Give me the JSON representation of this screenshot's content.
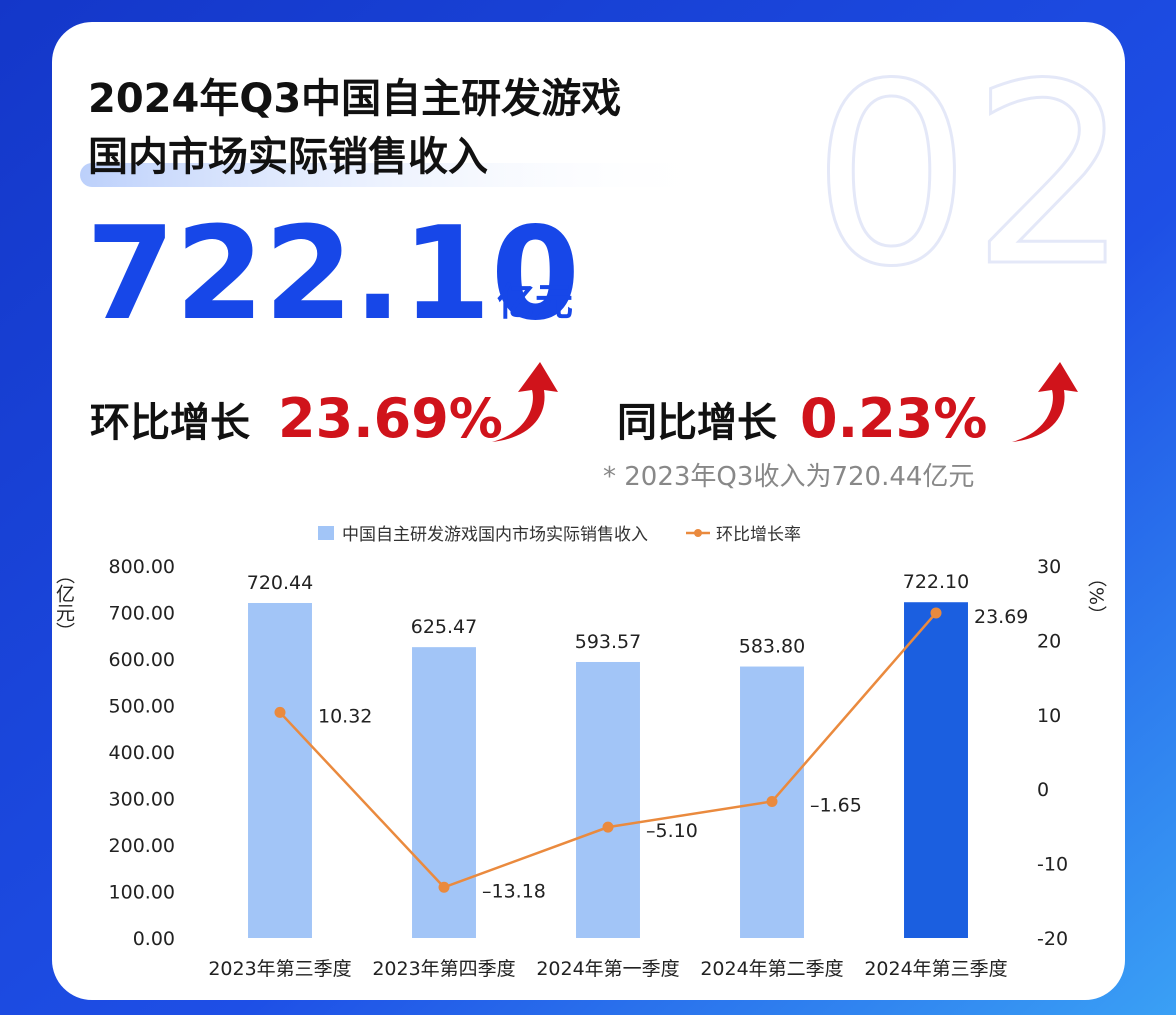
{
  "header": {
    "title_line1": "2024年Q3中国自主研发游戏",
    "title_line2": "国内市场实际销售收入",
    "watermark": "02",
    "revenue": "722.10",
    "revenue_unit": "亿元",
    "qoq_label": "环比增长",
    "qoq_value": "23.69%",
    "yoy_label": "同比增长",
    "yoy_value": "0.23%",
    "note": "* 2023年Q3收入为720.44亿元"
  },
  "chart_data": {
    "type": "bar",
    "ylabel": "（亿元）",
    "y2label": "（%）",
    "categories": [
      "2023年第三季度",
      "2023年第四季度",
      "2024年第一季度",
      "2024年第二季度",
      "2024年第三季度"
    ],
    "series": [
      {
        "name": "中国自主研发游戏国内市场实际销售收入",
        "type": "bar",
        "color": "#a2c5f7",
        "colors": [
          "#a2c5f7",
          "#a2c5f7",
          "#a2c5f7",
          "#a2c5f7",
          "#1b5fe0"
        ],
        "values": [
          720.44,
          625.47,
          593.57,
          583.8,
          722.1
        ],
        "value_labels": [
          "720.44",
          "625.47",
          "593.57",
          "583.80",
          "722.10"
        ]
      },
      {
        "name": "环比增长率",
        "type": "line",
        "axis": "y2",
        "color": "#ea8a3e",
        "values": [
          10.32,
          -13.18,
          -5.1,
          -1.65,
          23.69
        ],
        "value_labels": [
          "10.32",
          "–13.18",
          "–5.10",
          "–1.65",
          "23.69"
        ]
      }
    ],
    "ylim": [
      0,
      800
    ],
    "yticks": [
      {
        "value": 0,
        "label": "0.00"
      },
      {
        "value": 100,
        "label": "100.00"
      },
      {
        "value": 200,
        "label": "200.00"
      },
      {
        "value": 300,
        "label": "300.00"
      },
      {
        "value": 400,
        "label": "400.00"
      },
      {
        "value": 500,
        "label": "500.00"
      },
      {
        "value": 600,
        "label": "600.00"
      },
      {
        "value": 700,
        "label": "700.00"
      },
      {
        "value": 800,
        "label": "800.00"
      }
    ],
    "y2lim": [
      -20,
      30
    ],
    "y2ticks": [
      -20,
      -10,
      0,
      10,
      20,
      30
    ],
    "legend": "top",
    "grid": false
  }
}
